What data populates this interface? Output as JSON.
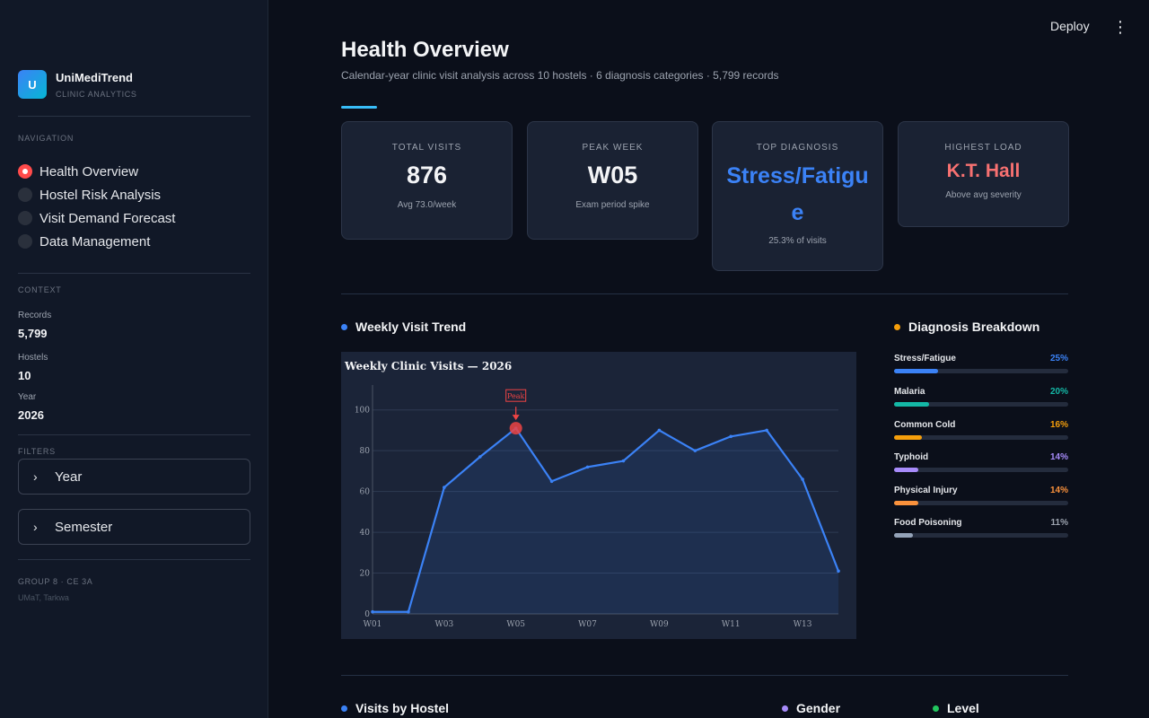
{
  "brand": {
    "logo_letter": "U",
    "name": "UniMediTrend",
    "sub": "CLINIC ANALYTICS"
  },
  "nav": {
    "section_label": "NAVIGATION",
    "items": [
      {
        "label": "Health Overview",
        "active": true
      },
      {
        "label": "Hostel Risk Analysis",
        "active": false
      },
      {
        "label": "Visit Demand Forecast",
        "active": false
      },
      {
        "label": "Data Management",
        "active": false
      }
    ]
  },
  "context": {
    "section_label": "CONTEXT",
    "records_label": "Records",
    "records": "5,799",
    "hostels_label": "Hostels",
    "hostels": "10",
    "year_label": "Year",
    "year": "2026"
  },
  "filters": {
    "section_label": "FILTERS",
    "year": "Year",
    "semester": "Semester"
  },
  "footer": {
    "line1": "GROUP 8 · CE 3A",
    "line2": "UMaT, Tarkwa"
  },
  "topbar": {
    "deploy": "Deploy",
    "menu_icon": "kebab-menu-icon"
  },
  "page": {
    "title": "Health Overview",
    "subtitle": "Calendar-year clinic visit analysis across 10 hostels · 6 diagnosis categories · 5,799 records"
  },
  "kpis": [
    {
      "label": "TOTAL VISITS",
      "value": "876",
      "note": "Avg 73.0/week",
      "color": "#f3f4f6"
    },
    {
      "label": "PEAK WEEK",
      "value": "W05",
      "note": "Exam period spike",
      "color": "#f3f4f6"
    },
    {
      "label": "TOP DIAGNOSIS",
      "value": "Stress/Fatigue",
      "note": "25.3% of visits",
      "color": "#3b82f6"
    },
    {
      "label": "HIGHEST LOAD",
      "value": "K.T. Hall",
      "note": "Above avg severity",
      "color": "#f87171"
    }
  ],
  "sections": {
    "trend": {
      "title": "Weekly Visit Trend",
      "dot_color": "#3b82f6"
    },
    "diagnosis": {
      "title": "Diagnosis Breakdown",
      "dot_color": "#f59e0b"
    },
    "hostel": {
      "title": "Visits by Hostel",
      "dot_color": "#3b82f6"
    },
    "gender": {
      "title": "Gender",
      "dot_color": "#a78bfa"
    },
    "level": {
      "title": "Level",
      "dot_color": "#22c55e"
    }
  },
  "diagnoses": [
    {
      "name": "Stress/Fatigue",
      "pct": "25%",
      "value": 25,
      "color": "#3b82f6"
    },
    {
      "name": "Malaria",
      "pct": "20%",
      "value": 20,
      "color": "#14b8a6"
    },
    {
      "name": "Common Cold",
      "pct": "16%",
      "value": 16,
      "color": "#f59e0b"
    },
    {
      "name": "Typhoid",
      "pct": "14%",
      "value": 14,
      "color": "#a78bfa"
    },
    {
      "name": "Physical Injury",
      "pct": "14%",
      "value": 14,
      "color": "#fb923c"
    },
    {
      "name": "Food Poisoning",
      "pct": "11%",
      "value": 11,
      "color": "#94a3b8"
    }
  ],
  "chart_data": {
    "type": "area",
    "title": "Weekly Clinic Visits — 2026",
    "x": [
      "W01",
      "W02",
      "W03",
      "W04",
      "W05",
      "W06",
      "W07",
      "W08",
      "W09",
      "W10",
      "W11",
      "W12",
      "W13",
      "W14"
    ],
    "tick_labels": [
      "W01",
      "W03",
      "W05",
      "W07",
      "W09",
      "W11",
      "W13"
    ],
    "series": [
      {
        "values": [
          1,
          1,
          62,
          77,
          91,
          65,
          72,
          75,
          90,
          80,
          87,
          90,
          66,
          21
        ]
      }
    ],
    "ylim": [
      0,
      110
    ],
    "yticks": [
      0,
      20,
      40,
      60,
      80,
      100
    ],
    "annotation": {
      "text": "Peak",
      "x": "W05",
      "y": 91
    },
    "grid": true,
    "line_color": "#3b82f6",
    "peak_color": "#ef4444"
  }
}
